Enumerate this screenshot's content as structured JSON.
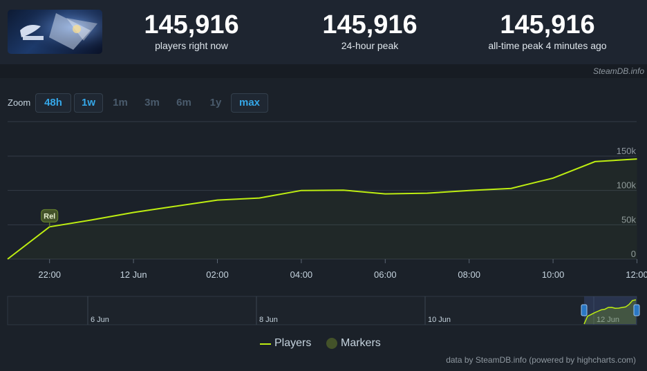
{
  "header": {
    "game_thumb_icon": "game-cover-art-icon",
    "stats": [
      {
        "value": "145,916",
        "label": "players right now"
      },
      {
        "value": "145,916",
        "label": "24-hour peak"
      },
      {
        "value": "145,916",
        "label": "all-time peak 4 minutes ago"
      }
    ]
  },
  "credit_bar": {
    "text": "SteamDB.info"
  },
  "zoom": {
    "label": "Zoom",
    "buttons": [
      {
        "label": "48h",
        "active": true
      },
      {
        "label": "1w",
        "active": true
      },
      {
        "label": "1m",
        "active": false
      },
      {
        "label": "3m",
        "active": false
      },
      {
        "label": "6m",
        "active": false
      },
      {
        "label": "1y",
        "active": false
      },
      {
        "label": "max",
        "active": true
      }
    ]
  },
  "chart_data": {
    "type": "line",
    "series": [
      {
        "name": "Players",
        "color": "#beee11",
        "x": [
          "21:00",
          "22:00",
          "23:00",
          "00:00",
          "01:00",
          "02:00",
          "03:00",
          "04:00",
          "05:00",
          "06:00",
          "07:00",
          "08:00",
          "09:00",
          "10:00",
          "11:00",
          "12:00"
        ],
        "values": [
          0,
          47000,
          57000,
          68000,
          77000,
          86000,
          89000,
          100000,
          100500,
          95000,
          96000,
          100000,
          103000,
          118000,
          142000,
          145916
        ]
      }
    ],
    "x_tick_labels": [
      "22:00",
      "12 Jun",
      "02:00",
      "04:00",
      "06:00",
      "08:00",
      "10:00",
      "12:00"
    ],
    "y_tick_labels": [
      "0",
      "50k",
      "100k",
      "150k"
    ],
    "ylim": [
      0,
      150000
    ],
    "grid": true,
    "markers": [
      {
        "label": "Rel",
        "x": "22:00"
      }
    ],
    "navigator_labels": [
      "6 Jun",
      "8 Jun",
      "10 Jun",
      "12 Jun"
    ],
    "legend": {
      "position": "bottom",
      "items": [
        {
          "label": "Players",
          "color": "#beee11"
        },
        {
          "label": "Markers",
          "color": "#435229"
        }
      ]
    }
  },
  "footer": {
    "credit": "data by SteamDB.info (powered by highcharts.com)"
  }
}
